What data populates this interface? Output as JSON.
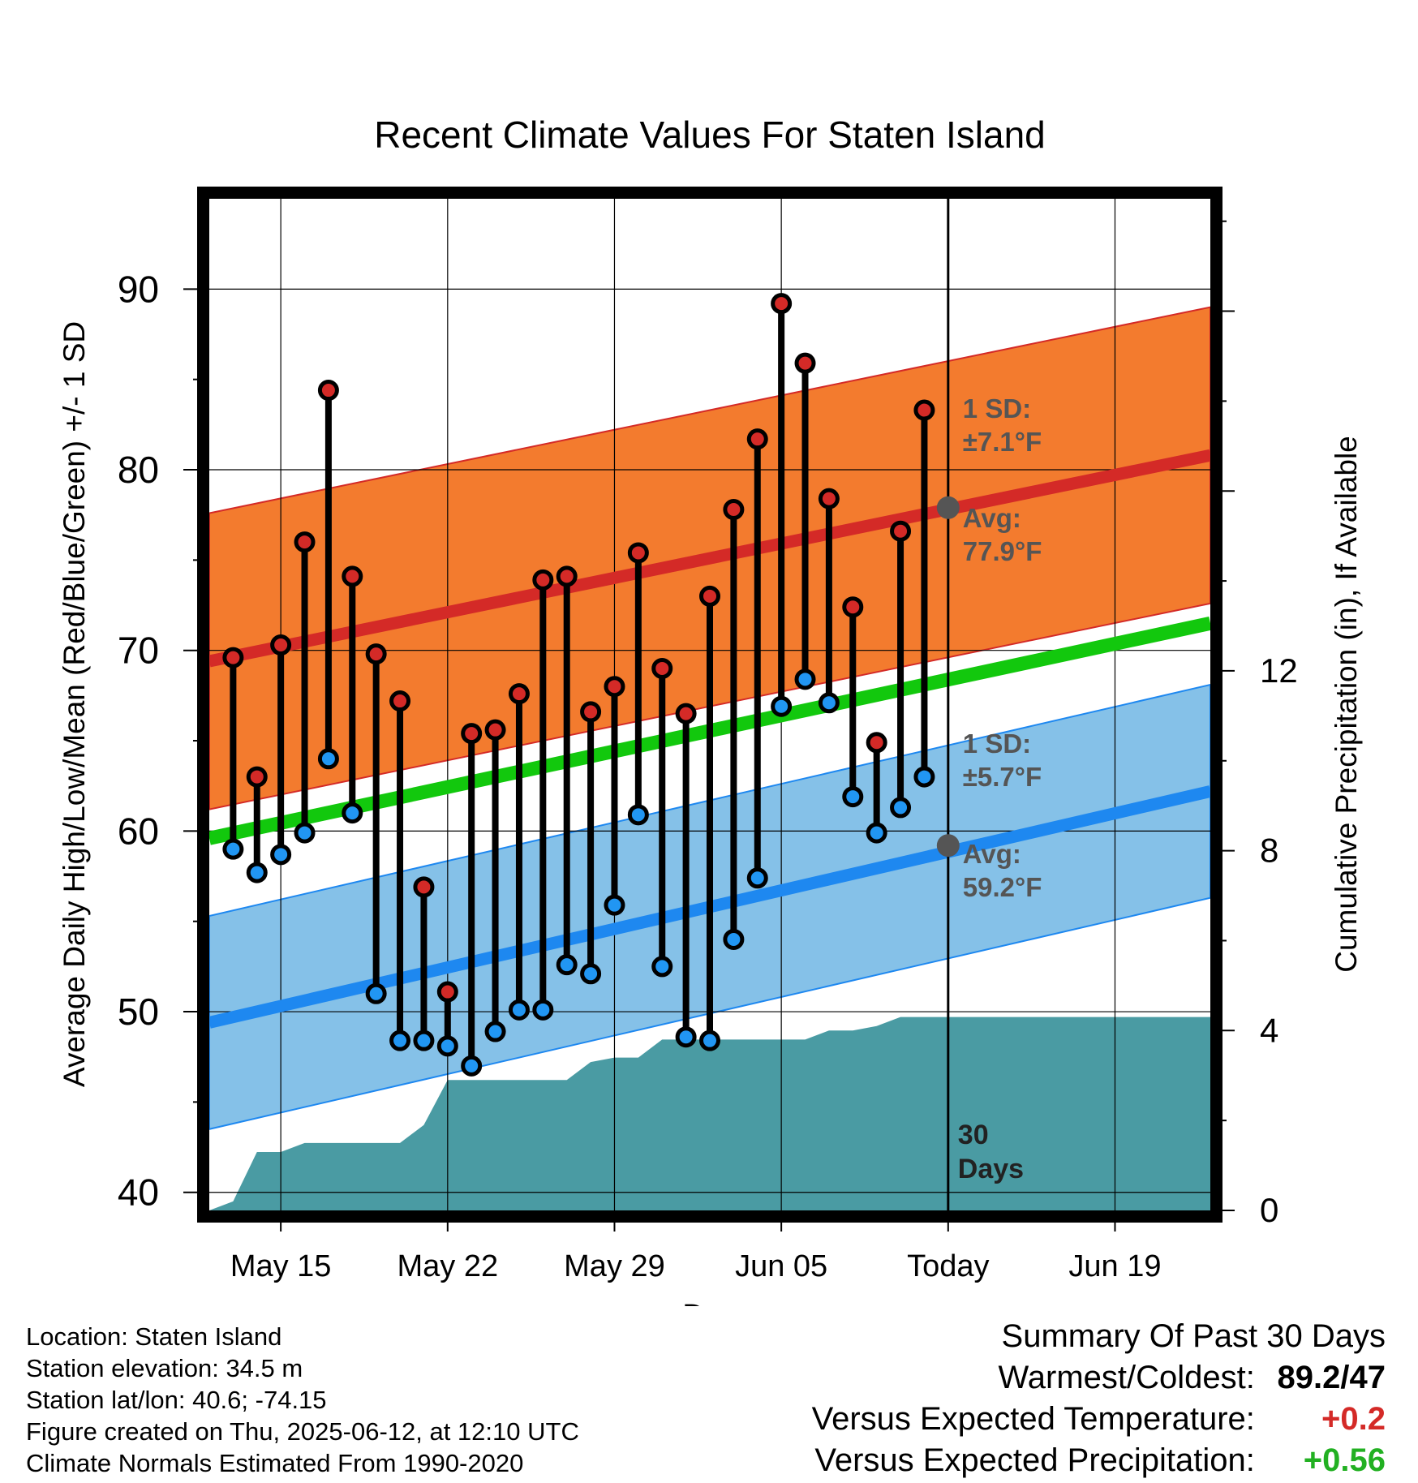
{
  "chart_data": {
    "type": "line",
    "title": "Recent Climate Values For Staten Island",
    "xlabel": "Day",
    "ylabel": "Average Daily High/Low/Mean (Red/Blue/Green) +/- 1 SD",
    "ylabel_right": "Cumulative Precipitation (in), If Available",
    "x_range": [
      "2025-05-12",
      "2025-06-23"
    ],
    "ylim": [
      39,
      95
    ],
    "y2lim": [
      0,
      22.5
    ],
    "x_ticks": [
      {
        "date": "2025-05-15",
        "label": "May 15"
      },
      {
        "date": "2025-05-22",
        "label": "May 22"
      },
      {
        "date": "2025-05-29",
        "label": "May 29"
      },
      {
        "date": "2025-06-05",
        "label": "Jun 05"
      },
      {
        "date": "2025-06-12",
        "label": "Today"
      },
      {
        "date": "2025-06-19",
        "label": "Jun 19"
      }
    ],
    "y_ticks": [
      40,
      50,
      60,
      70,
      80,
      90
    ],
    "y2_ticks": [
      0,
      4,
      8,
      12
    ],
    "grid": true,
    "today": "2025-06-12",
    "window_label": "30\nDays",
    "daily": [
      {
        "date": "2025-05-13",
        "high": 69.6,
        "low": 59.0
      },
      {
        "date": "2025-05-14",
        "high": 63.0,
        "low": 57.7
      },
      {
        "date": "2025-05-15",
        "high": 70.3,
        "low": 58.7
      },
      {
        "date": "2025-05-16",
        "high": 76.0,
        "low": 59.9
      },
      {
        "date": "2025-05-17",
        "high": 84.4,
        "low": 64.0
      },
      {
        "date": "2025-05-18",
        "high": 74.1,
        "low": 61.0
      },
      {
        "date": "2025-05-19",
        "high": 69.8,
        "low": 51.0
      },
      {
        "date": "2025-05-20",
        "high": 67.2,
        "low": 48.4
      },
      {
        "date": "2025-05-21",
        "high": 56.9,
        "low": 48.4
      },
      {
        "date": "2025-05-22",
        "high": 51.1,
        "low": 48.1
      },
      {
        "date": "2025-05-23",
        "high": 65.4,
        "low": 47.0
      },
      {
        "date": "2025-05-24",
        "high": 65.6,
        "low": 48.9
      },
      {
        "date": "2025-05-25",
        "high": 67.6,
        "low": 50.1
      },
      {
        "date": "2025-05-26",
        "high": 73.9,
        "low": 50.1
      },
      {
        "date": "2025-05-27",
        "high": 74.1,
        "low": 52.6
      },
      {
        "date": "2025-05-28",
        "high": 66.6,
        "low": 52.1
      },
      {
        "date": "2025-05-29",
        "high": 68.0,
        "low": 55.9
      },
      {
        "date": "2025-05-30",
        "high": 75.4,
        "low": 60.9
      },
      {
        "date": "2025-05-31",
        "high": 69.0,
        "low": 52.5
      },
      {
        "date": "2025-06-01",
        "high": 66.5,
        "low": 48.6
      },
      {
        "date": "2025-06-02",
        "high": 73.0,
        "low": 48.4
      },
      {
        "date": "2025-06-03",
        "high": 77.8,
        "low": 54.0
      },
      {
        "date": "2025-06-04",
        "high": 81.7,
        "low": 57.4
      },
      {
        "date": "2025-06-05",
        "high": 89.2,
        "low": 66.9
      },
      {
        "date": "2025-06-06",
        "high": 85.9,
        "low": 68.4
      },
      {
        "date": "2025-06-07",
        "high": 78.4,
        "low": 67.1
      },
      {
        "date": "2025-06-08",
        "high": 72.4,
        "low": 61.9
      },
      {
        "date": "2025-06-09",
        "high": 64.9,
        "low": 59.9
      },
      {
        "date": "2025-06-10",
        "high": 76.6,
        "low": 61.3
      },
      {
        "date": "2025-06-11",
        "high": 83.3,
        "low": 63.0
      }
    ],
    "normals": {
      "high_start": 69.4,
      "high_end": 80.8,
      "low_start": 49.4,
      "low_end": 62.2,
      "mean_start": 59.6,
      "mean_end": 71.5,
      "high_sd": 8.2,
      "low_sd": 5.9
    },
    "precip": [
      {
        "date": "2025-05-12",
        "value": 0.0
      },
      {
        "date": "2025-05-13",
        "value": 0.2
      },
      {
        "date": "2025-05-14",
        "value": 1.3
      },
      {
        "date": "2025-05-15",
        "value": 1.3
      },
      {
        "date": "2025-05-16",
        "value": 1.5
      },
      {
        "date": "2025-05-20",
        "value": 1.5
      },
      {
        "date": "2025-05-21",
        "value": 1.9
      },
      {
        "date": "2025-05-22",
        "value": 2.9
      },
      {
        "date": "2025-05-27",
        "value": 2.9
      },
      {
        "date": "2025-05-28",
        "value": 3.3
      },
      {
        "date": "2025-05-29",
        "value": 3.4
      },
      {
        "date": "2025-05-30",
        "value": 3.4
      },
      {
        "date": "2025-05-31",
        "value": 3.8
      },
      {
        "date": "2025-06-06",
        "value": 3.8
      },
      {
        "date": "2025-06-07",
        "value": 4.0
      },
      {
        "date": "2025-06-08",
        "value": 4.0
      },
      {
        "date": "2025-06-09",
        "value": 4.1
      },
      {
        "date": "2025-06-10",
        "value": 4.3
      },
      {
        "date": "2025-06-23",
        "value": 4.3
      }
    ],
    "annotations": {
      "high": {
        "sd_label": "1 SD:",
        "sd_value": "±7.1°F",
        "avg_label": "Avg:",
        "avg_value": "77.9°F",
        "today_avg": 77.9
      },
      "low": {
        "sd_label": "1 SD:",
        "sd_value": "±5.7°F",
        "avg_label": "Avg:",
        "avg_value": "59.2°F",
        "today_avg": 59.2
      }
    },
    "colors": {
      "high_band": "#f37b2e",
      "high_line": "#d42a27",
      "low_band": "#85c1e8",
      "low_line": "#1e88f0",
      "mean_line": "#12c80d",
      "precip": "#4a9ba3",
      "high_marker": "#d42a27",
      "low_marker": "#2196f3",
      "annotation_text": "#555555"
    }
  },
  "info": {
    "location": "Location: Staten Island",
    "elevation": "Station elevation: 34.5 m",
    "latlon": "Station lat/lon: 40.6; -74.15",
    "created": "Figure created on Thu, 2025-06-12, at 12:10 UTC",
    "normals": "Climate Normals Estimated From 1990-2020"
  },
  "summary": {
    "title": "Summary Of Past 30 Days",
    "warmest_label": "Warmest/Coldest:",
    "warmest_value": "89.2/47",
    "temp_label": "Versus Expected Temperature:",
    "temp_value": "+0.2",
    "temp_color": "#d42a27",
    "precip_label": "Versus Expected Precipitation:",
    "precip_value": "+0.56",
    "precip_color": "#22b022"
  }
}
